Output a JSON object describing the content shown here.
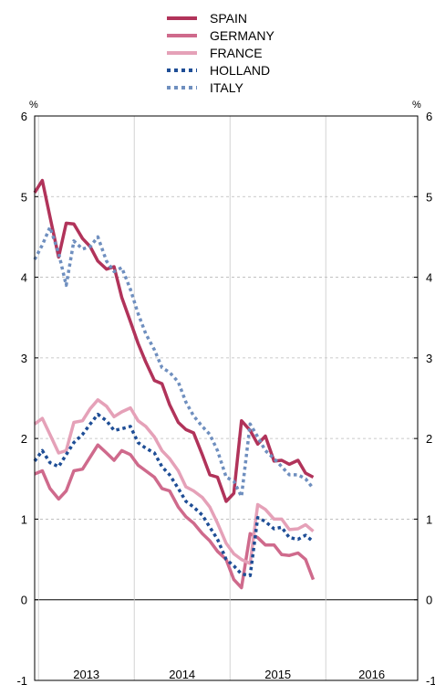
{
  "chart_data": {
    "type": "line",
    "left_unit": "%",
    "right_unit": "%",
    "ylim": [
      -1,
      6
    ],
    "y_ticks": [
      "-1",
      "0",
      "1",
      "2",
      "3",
      "4",
      "5",
      "6"
    ],
    "x_labels": [
      "2013",
      "2014",
      "2015",
      "2016"
    ],
    "xlim": [
      2012.96,
      2016.96
    ],
    "grid": "horizontal dashed, vertical year separators",
    "legend_position": "top",
    "series": [
      {
        "name": "SPAIN",
        "color": "#b1335a",
        "style": "solid",
        "x": [
          2012.96,
          2013.04,
          2013.12,
          2013.21,
          2013.29,
          2013.37,
          2013.46,
          2013.54,
          2013.62,
          2013.71,
          2013.79,
          2013.87,
          2013.96,
          2014.04,
          2014.12,
          2014.21,
          2014.29,
          2014.37,
          2014.46,
          2014.54,
          2014.62,
          2014.71,
          2014.79,
          2014.87,
          2014.96,
          2015.04,
          2015.12,
          2015.21,
          2015.29,
          2015.37,
          2015.46,
          2015.54,
          2015.62,
          2015.71,
          2015.79,
          2015.87
        ],
        "values": [
          5.05,
          5.2,
          4.75,
          4.25,
          4.67,
          4.66,
          4.48,
          4.38,
          4.2,
          4.1,
          4.13,
          3.75,
          3.45,
          3.18,
          2.95,
          2.72,
          2.68,
          2.42,
          2.2,
          2.11,
          2.07,
          1.8,
          1.55,
          1.52,
          1.22,
          1.32,
          2.22,
          2.1,
          1.93,
          2.03,
          1.72,
          1.73,
          1.68,
          1.73,
          1.57,
          1.52
        ]
      },
      {
        "name": "GERMANY",
        "color": "#cf6a8c",
        "style": "solid",
        "x": [
          2012.96,
          2013.04,
          2013.12,
          2013.21,
          2013.29,
          2013.37,
          2013.46,
          2013.54,
          2013.62,
          2013.71,
          2013.79,
          2013.87,
          2013.96,
          2014.04,
          2014.12,
          2014.21,
          2014.29,
          2014.37,
          2014.46,
          2014.54,
          2014.62,
          2014.71,
          2014.79,
          2014.87,
          2014.96,
          2015.04,
          2015.12,
          2015.21,
          2015.29,
          2015.37,
          2015.46,
          2015.54,
          2015.62,
          2015.71,
          2015.79,
          2015.87
        ],
        "values": [
          1.56,
          1.6,
          1.38,
          1.25,
          1.35,
          1.6,
          1.62,
          1.77,
          1.92,
          1.82,
          1.73,
          1.85,
          1.8,
          1.67,
          1.6,
          1.52,
          1.38,
          1.35,
          1.15,
          1.03,
          0.95,
          0.82,
          0.73,
          0.6,
          0.5,
          0.25,
          0.15,
          0.82,
          0.77,
          0.68,
          0.68,
          0.56,
          0.55,
          0.58,
          0.5,
          0.25
        ]
      },
      {
        "name": "FRANCE",
        "color": "#e5a1b8",
        "style": "solid",
        "x": [
          2012.96,
          2013.04,
          2013.12,
          2013.21,
          2013.29,
          2013.37,
          2013.46,
          2013.54,
          2013.62,
          2013.71,
          2013.79,
          2013.87,
          2013.96,
          2014.04,
          2014.12,
          2014.21,
          2014.29,
          2014.37,
          2014.46,
          2014.54,
          2014.62,
          2014.71,
          2014.79,
          2014.87,
          2014.96,
          2015.04,
          2015.12,
          2015.21,
          2015.29,
          2015.37,
          2015.46,
          2015.54,
          2015.62,
          2015.71,
          2015.79,
          2015.87
        ],
        "values": [
          2.18,
          2.25,
          2.05,
          1.82,
          1.85,
          2.2,
          2.22,
          2.37,
          2.48,
          2.4,
          2.27,
          2.33,
          2.38,
          2.22,
          2.15,
          2.02,
          1.85,
          1.75,
          1.6,
          1.4,
          1.35,
          1.27,
          1.15,
          0.95,
          0.7,
          0.57,
          0.5,
          0.45,
          1.18,
          1.12,
          1.0,
          1.0,
          0.87,
          0.88,
          0.93,
          0.85
        ]
      },
      {
        "name": "HOLLAND",
        "color": "#1f4e96",
        "style": "dotted",
        "x": [
          2012.96,
          2013.04,
          2013.12,
          2013.21,
          2013.29,
          2013.37,
          2013.46,
          2013.54,
          2013.62,
          2013.71,
          2013.79,
          2013.87,
          2013.96,
          2014.04,
          2014.12,
          2014.21,
          2014.29,
          2014.37,
          2014.46,
          2014.54,
          2014.62,
          2014.71,
          2014.79,
          2014.87,
          2014.96,
          2015.04,
          2015.12,
          2015.21,
          2015.29,
          2015.37,
          2015.46,
          2015.54,
          2015.62,
          2015.71,
          2015.79,
          2015.87
        ],
        "values": [
          1.72,
          1.85,
          1.7,
          1.65,
          1.8,
          1.95,
          2.05,
          2.18,
          2.3,
          2.22,
          2.1,
          2.12,
          2.15,
          1.95,
          1.88,
          1.82,
          1.65,
          1.55,
          1.38,
          1.22,
          1.15,
          1.05,
          0.9,
          0.75,
          0.5,
          0.42,
          0.32,
          0.3,
          1.02,
          0.97,
          0.88,
          0.9,
          0.77,
          0.75,
          0.8,
          0.72
        ]
      },
      {
        "name": "ITALY",
        "color": "#6f8fbf",
        "style": "dotted",
        "x": [
          2012.96,
          2013.04,
          2013.12,
          2013.21,
          2013.29,
          2013.37,
          2013.46,
          2013.54,
          2013.62,
          2013.71,
          2013.79,
          2013.87,
          2013.96,
          2014.04,
          2014.12,
          2014.21,
          2014.29,
          2014.37,
          2014.46,
          2014.54,
          2014.62,
          2014.71,
          2014.79,
          2014.87,
          2014.96,
          2015.04,
          2015.12,
          2015.21,
          2015.29,
          2015.37,
          2015.46,
          2015.54,
          2015.62,
          2015.71,
          2015.79,
          2015.87
        ],
        "values": [
          4.22,
          4.4,
          4.62,
          4.3,
          3.9,
          4.45,
          4.35,
          4.38,
          4.5,
          4.2,
          4.07,
          4.12,
          3.85,
          3.55,
          3.3,
          3.1,
          2.88,
          2.82,
          2.7,
          2.45,
          2.28,
          2.15,
          2.05,
          1.85,
          1.52,
          1.47,
          1.28,
          2.18,
          2.02,
          1.85,
          1.75,
          1.65,
          1.55,
          1.55,
          1.5,
          1.38
        ]
      }
    ]
  }
}
